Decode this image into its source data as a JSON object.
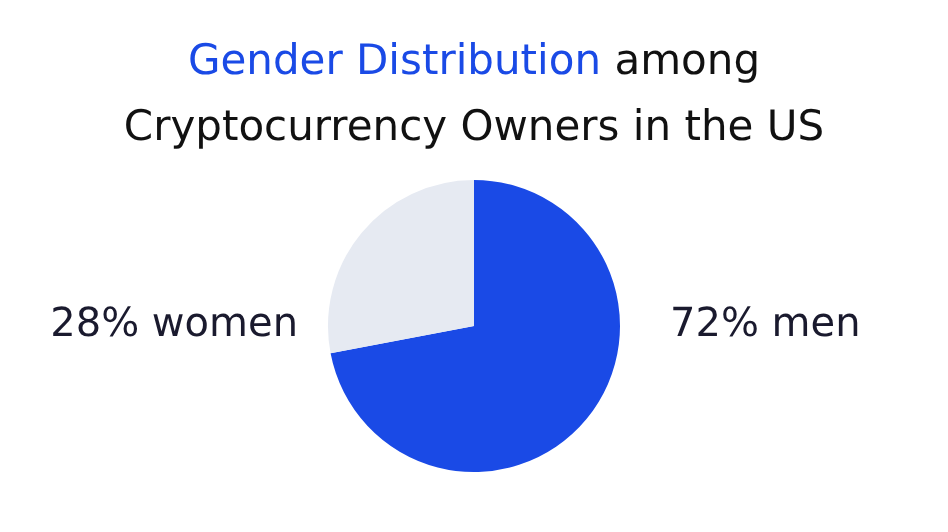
{
  "chart_data": {
    "type": "pie",
    "title": "Gender Distribution among Cryptocurrency Owners in the US",
    "categories": [
      "men",
      "women"
    ],
    "values": [
      72,
      28
    ],
    "colors": [
      "#1a4ae6",
      "#e6eaf2"
    ],
    "value_labels": [
      "72%",
      "28%"
    ],
    "legend": false
  }
}
